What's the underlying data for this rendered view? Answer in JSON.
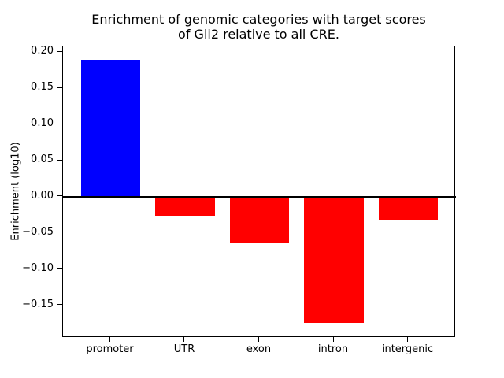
{
  "figure": {
    "title_line1": "Enrichment of genomic categories with target scores",
    "title_line2": "of Gli2 relative to all CRE.",
    "ylabel": "Enrichment (log10)"
  },
  "chart_data": {
    "type": "bar",
    "title": "Enrichment of genomic categories with target scores\nof Gli2 relative to all CRE.",
    "xlabel": "",
    "ylabel": "Enrichment (log10)",
    "categories": [
      "promoter",
      "UTR",
      "exon",
      "intron",
      "intergenic"
    ],
    "values": [
      0.19,
      -0.026,
      -0.064,
      -0.174,
      -0.032
    ],
    "bar_colors": [
      "#0000ff",
      "#ff0000",
      "#ff0000",
      "#ff0000",
      "#ff0000"
    ],
    "positive_color": "#0000ff",
    "negative_color": "#ff0000",
    "bar_width": 0.8,
    "xlim": [
      -0.64,
      4.64
    ],
    "ylim": [
      -0.195,
      0.208
    ],
    "yticks": [
      0.2,
      0.15,
      0.1,
      0.05,
      0.0,
      -0.05,
      -0.1,
      -0.15
    ],
    "grid": false,
    "legend": null,
    "zero_line": true,
    "frame_color": "#000000",
    "background_color": "#ffffff"
  }
}
